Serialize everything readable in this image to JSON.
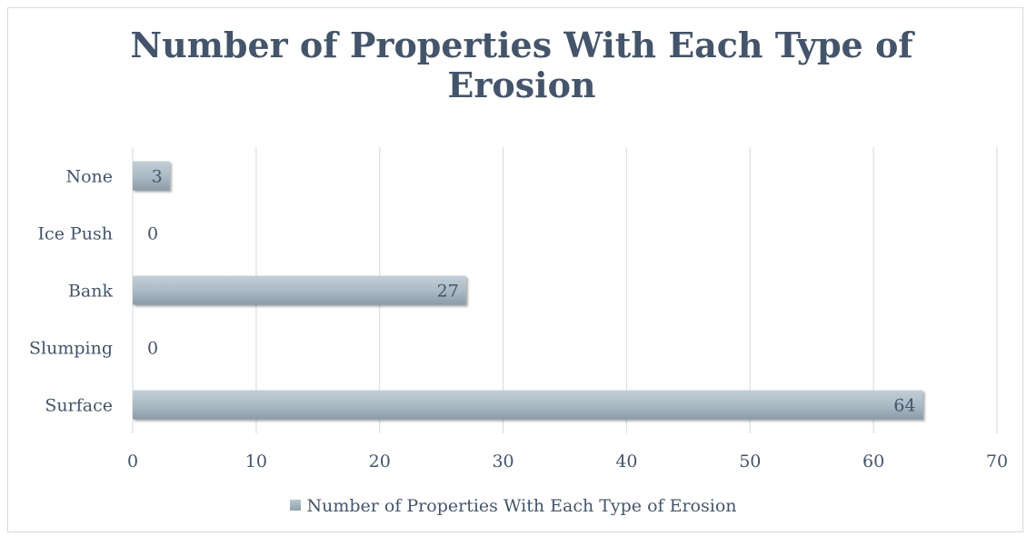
{
  "chart_data": {
    "type": "bar",
    "orientation": "horizontal",
    "title": "Number of Properties With Each Type of Erosion",
    "categories": [
      "Surface",
      "Slumping",
      "Bank",
      "Ice Push",
      "None"
    ],
    "series": [
      {
        "name": "Number of Properties With Each Type of Erosion",
        "values": [
          64,
          0,
          27,
          0,
          3
        ],
        "color": "#a7b6c1"
      }
    ],
    "xlim": [
      0,
      70
    ],
    "xticks": [
      0,
      10,
      20,
      30,
      40,
      50,
      60,
      70
    ],
    "grid": true,
    "legend_position": "bottom",
    "data_labels": true
  }
}
